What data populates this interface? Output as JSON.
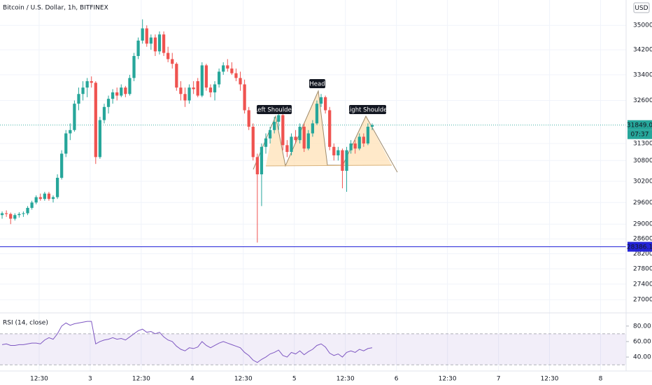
{
  "chart_data": {
    "type": "candlestick",
    "title": "Bitcoin / U.S. Dollar, 1h, BITFINEX",
    "currency": "USD",
    "log_scale": true,
    "grid": true,
    "up_color": "#26a69a",
    "down_color": "#ef5350",
    "open": [
      29250,
      29300,
      29280,
      29150,
      29250,
      29280,
      29300,
      29450,
      29600,
      29750,
      29700,
      29850,
      29700,
      29750,
      30300,
      31000,
      31600,
      31700,
      32500,
      32800,
      33000,
      33200,
      33150,
      30900,
      32000,
      32400,
      32650,
      32850,
      32750,
      33000,
      32800,
      33300,
      34000,
      34500,
      34900,
      34400,
      34600,
      34150,
      34700,
      34100,
      33900,
      33750,
      33000,
      32800,
      32600,
      33000,
      33200,
      32750,
      33700,
      33000,
      32850,
      33100,
      33500,
      33700,
      33600,
      33450,
      33300,
      33100,
      32300,
      31800,
      30900,
      30400,
      31200,
      31450,
      31700,
      31950,
      32150,
      31250,
      31050,
      31500,
      31400,
      31800,
      31150,
      31600,
      31900,
      32500,
      32700,
      32300,
      31200,
      30950,
      31100,
      30500,
      31100,
      31300,
      31150,
      31500,
      31300,
      31800
    ],
    "high": [
      29350,
      29380,
      29320,
      29300,
      29330,
      29350,
      29500,
      29650,
      29800,
      29850,
      29900,
      29900,
      29800,
      30400,
      31100,
      31700,
      31900,
      32600,
      33000,
      33200,
      33300,
      33350,
      33200,
      32100,
      32500,
      32750,
      32950,
      33000,
      33100,
      33050,
      33400,
      34100,
      34600,
      35200,
      35000,
      34700,
      34700,
      34800,
      34800,
      34300,
      34100,
      33800,
      33200,
      33000,
      33100,
      33200,
      33300,
      33800,
      33750,
      33100,
      33200,
      33600,
      33800,
      33900,
      33800,
      33600,
      33500,
      33250,
      32400,
      31900,
      31000,
      31300,
      31600,
      31800,
      32100,
      32200,
      32200,
      31400,
      31600,
      31700,
      31900,
      31900,
      31700,
      32000,
      32600,
      32800,
      32750,
      32400,
      31300,
      31200,
      31150,
      31200,
      31400,
      31400,
      31600,
      31600,
      31900,
      31900
    ],
    "low": [
      29150,
      29200,
      29000,
      29100,
      29180,
      29200,
      29250,
      29400,
      29550,
      29650,
      29650,
      29650,
      29600,
      29700,
      30250,
      30900,
      31400,
      31650,
      32300,
      32600,
      32700,
      33000,
      30700,
      30850,
      31900,
      32200,
      32500,
      32600,
      32700,
      32700,
      32750,
      33200,
      33900,
      34400,
      34300,
      34200,
      34000,
      34050,
      34000,
      33800,
      33600,
      32900,
      32600,
      32400,
      32500,
      32800,
      32700,
      32700,
      32900,
      32700,
      32600,
      33000,
      33400,
      33500,
      33400,
      33200,
      32900,
      32200,
      31700,
      30800,
      28500,
      29500,
      31000,
      31300,
      31600,
      31700,
      31100,
      30900,
      30950,
      31300,
      31300,
      31050,
      31100,
      31500,
      31850,
      32400,
      32200,
      31100,
      30800,
      30800,
      30000,
      29900,
      31000,
      31000,
      31100,
      31200,
      31250,
      31700
    ],
    "close": [
      29300,
      29280,
      29150,
      29250,
      29280,
      29300,
      29450,
      29600,
      29750,
      29700,
      29850,
      29700,
      29750,
      30300,
      31000,
      31600,
      31700,
      32500,
      32800,
      33000,
      33200,
      33150,
      30900,
      32000,
      32400,
      32650,
      32850,
      32750,
      33000,
      32800,
      33300,
      34000,
      34500,
      34900,
      34400,
      34600,
      34150,
      34700,
      34100,
      33900,
      33750,
      33000,
      32800,
      32600,
      33000,
      32950,
      32750,
      33700,
      33000,
      32850,
      33100,
      33500,
      33700,
      33600,
      33450,
      33300,
      33100,
      32300,
      31800,
      30900,
      30400,
      31200,
      31450,
      31700,
      31950,
      32150,
      31250,
      31050,
      31500,
      31400,
      31800,
      31150,
      31600,
      31900,
      32500,
      32700,
      32300,
      31200,
      30950,
      31100,
      30500,
      31100,
      31300,
      31150,
      31500,
      31300,
      31800,
      31849
    ],
    "xlim": [
      -0.5,
      146.7
    ],
    "xticks": [
      {
        "value": 8.7,
        "label": "12:30"
      },
      {
        "value": 20.7,
        "label": "3"
      },
      {
        "value": 32.7,
        "label": "12:30"
      },
      {
        "value": 44.7,
        "label": "4"
      },
      {
        "value": 56.7,
        "label": "12:30"
      },
      {
        "value": 68.7,
        "label": "5"
      },
      {
        "value": 80.7,
        "label": "12:30"
      },
      {
        "value": 92.7,
        "label": "6"
      },
      {
        "value": 104.7,
        "label": "12:30"
      },
      {
        "value": 116.7,
        "label": "7"
      },
      {
        "value": 128.7,
        "label": "12:30"
      },
      {
        "value": 140.7,
        "label": "8"
      }
    ],
    "ylim": [
      26700,
      35850
    ],
    "yticks": [
      {
        "value": 35000,
        "label": "35000.0"
      },
      {
        "value": 34200,
        "label": "34200.0"
      },
      {
        "value": 33400,
        "label": "33400.0"
      },
      {
        "value": 32600,
        "label": "32600.0"
      },
      {
        "value": 31300,
        "label": "31300.0"
      },
      {
        "value": 30800,
        "label": "30800.0"
      },
      {
        "value": 30200,
        "label": "30200.0"
      },
      {
        "value": 29600,
        "label": "29600.0"
      },
      {
        "value": 29000,
        "label": "29000.0"
      },
      {
        "value": 28600,
        "label": "28600.0"
      },
      {
        "value": 28200,
        "label": "28200.0"
      },
      {
        "value": 27800,
        "label": "27800.0"
      },
      {
        "value": 27400,
        "label": "27400.0"
      },
      {
        "value": 27000,
        "label": "27000.0"
      }
    ],
    "price_markers": [
      {
        "value": 31849,
        "label": "31849.0",
        "color": "#26a69a",
        "countdown": "07:37"
      },
      {
        "value": 28386.1,
        "label": "28386.1",
        "color": "#2424d8"
      }
    ],
    "annotations": [
      "Left Shoulder",
      "Head",
      "Right Shoulder"
    ],
    "rsi": {
      "title": "RSI (14, close)",
      "color": "#7e57c2",
      "values": [
        56,
        57,
        55,
        55,
        56,
        56,
        57,
        58,
        58,
        57,
        62,
        65,
        63,
        70,
        80,
        84,
        81,
        83,
        84,
        85,
        86,
        86,
        57,
        60,
        62,
        63,
        65,
        63,
        64,
        62,
        66,
        70,
        74,
        76,
        72,
        73,
        70,
        72,
        66,
        62,
        60,
        54,
        50,
        48,
        52,
        51,
        53,
        60,
        55,
        52,
        55,
        58,
        60,
        58,
        56,
        54,
        52,
        46,
        42,
        36,
        33,
        37,
        40,
        44,
        46,
        49,
        42,
        40,
        46,
        44,
        48,
        43,
        47,
        50,
        55,
        57,
        53,
        45,
        42,
        44,
        40,
        46,
        48,
        46,
        50,
        48,
        51,
        52
      ],
      "ylim": [
        22,
        97
      ],
      "yticks": [
        {
          "value": 80,
          "label": "80.00"
        },
        {
          "value": 60,
          "label": "60.00"
        },
        {
          "value": 40,
          "label": "40.00"
        }
      ],
      "band": [
        30,
        70
      ]
    }
  }
}
